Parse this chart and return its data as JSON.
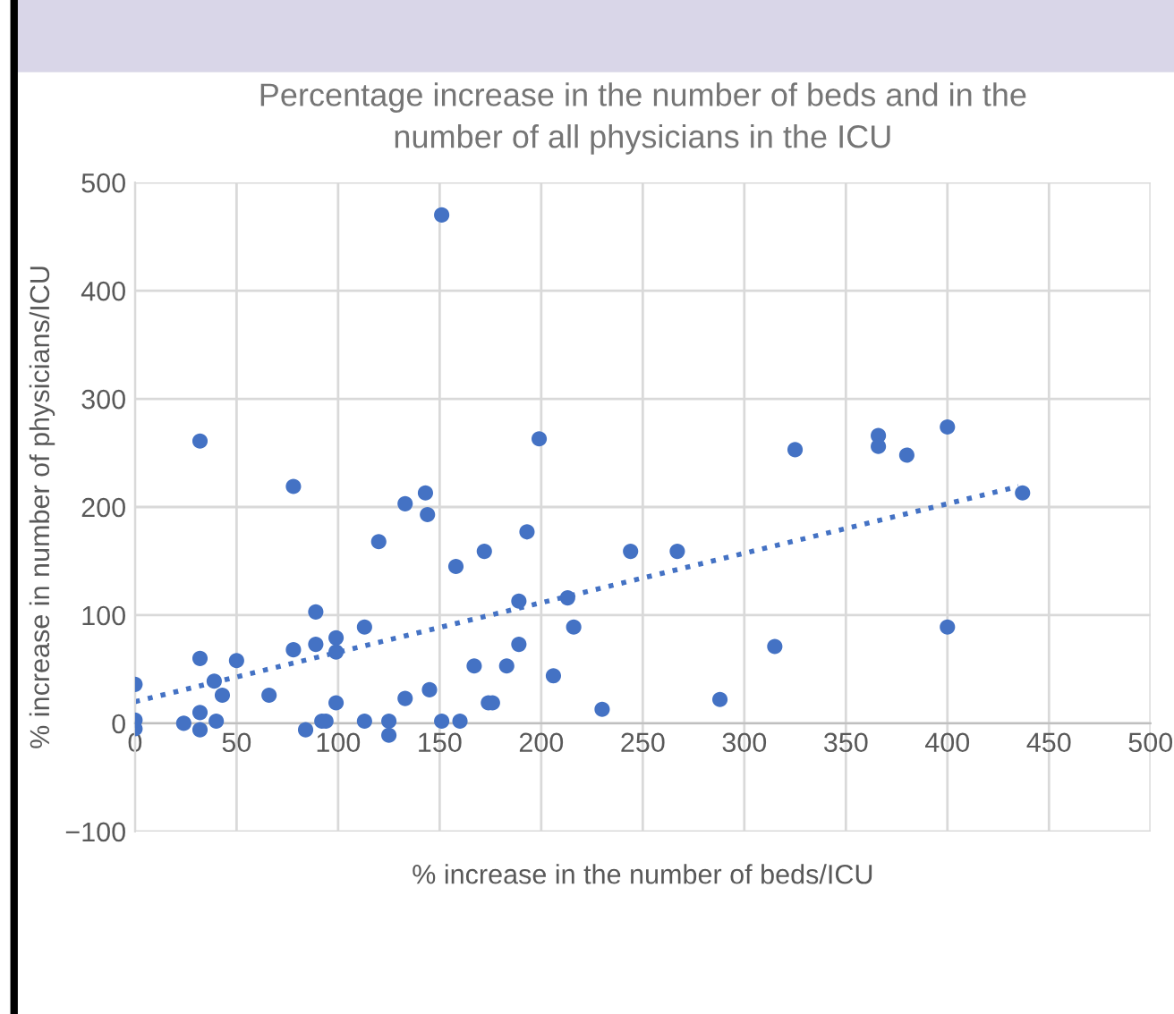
{
  "chart_data": {
    "type": "scatter",
    "title": "Percentage increase in the number of beds and in the\nnumber of all physicians in the ICU",
    "xlabel": "% increase in the number of beds/ICU",
    "ylabel": "% increase in number of physicians/ICU",
    "xlim": [
      0,
      500
    ],
    "xticks": [
      0,
      50,
      100,
      150,
      200,
      250,
      300,
      350,
      400,
      450,
      500
    ],
    "ylim": [
      -100,
      500
    ],
    "yticks": [
      {
        "value": -100,
        "label": "−100"
      },
      0,
      100,
      200,
      300,
      400,
      500
    ],
    "grid": true,
    "series": [
      {
        "marker": "circle",
        "color": "#4472c4",
        "x": [
          0,
          0,
          0,
          24,
          32,
          32,
          32,
          32,
          39,
          40,
          43,
          50,
          66,
          78,
          78,
          84,
          89,
          89,
          92,
          94,
          99,
          99,
          99,
          113,
          113,
          120,
          125,
          125,
          133,
          133,
          143,
          144,
          145,
          151,
          151,
          158,
          160,
          167,
          172,
          174,
          176,
          183,
          189,
          189,
          193,
          199,
          206,
          213,
          216,
          230,
          244,
          267,
          288,
          315,
          325,
          366,
          366,
          380,
          400,
          400,
          437
        ],
        "values": [
          -5,
          3,
          36,
          0,
          261,
          10,
          60,
          -6,
          39,
          2,
          26,
          58,
          26,
          219,
          68,
          -6,
          103,
          73,
          2,
          2,
          79,
          66,
          19,
          89,
          2,
          168,
          2,
          -11,
          203,
          23,
          213,
          193,
          31,
          470,
          2,
          145,
          2,
          53,
          159,
          19,
          19,
          53,
          113,
          73,
          177,
          263,
          44,
          116,
          89,
          13,
          159,
          159,
          22,
          71,
          253,
          266,
          256,
          248,
          274,
          89,
          213
        ]
      },
      {
        "type": "line",
        "marker": "none",
        "color": "#4472c4",
        "line_style": "dotted",
        "x": [
          0,
          435
        ],
        "values": [
          20,
          219
        ]
      }
    ]
  }
}
